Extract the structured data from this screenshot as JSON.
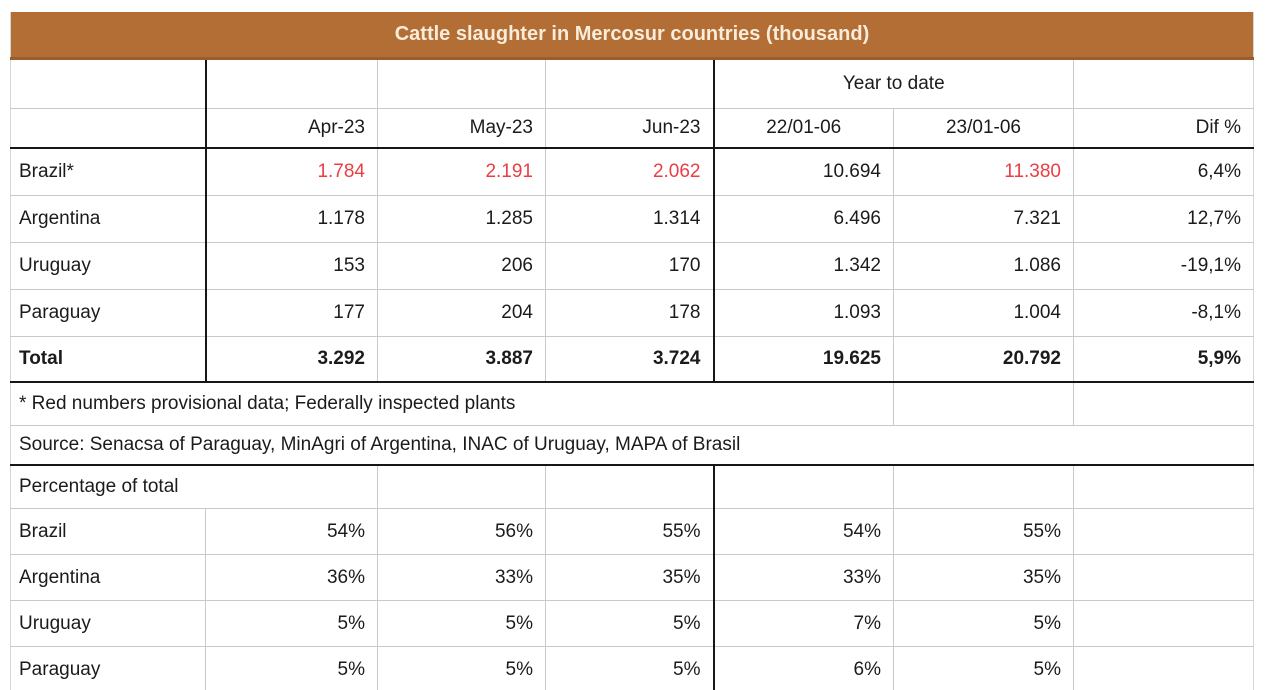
{
  "title": "Cattle slaughter in Mercosur countries (thousand)",
  "colors": {
    "title_bar_bg": "#b26e34",
    "title_text": "#f9ecdb",
    "provisional_red": "#ea3e45",
    "gridline_gray": "#c9c9c9",
    "border_black": "#161616"
  },
  "table": {
    "year_to_date_label": "Year to date",
    "columns": [
      "Apr-23",
      "May-23",
      "Jun-23",
      "22/01-06",
      "23/01-06",
      "Dif %"
    ],
    "rows": [
      {
        "label": "Brazil*",
        "values": [
          "1.784",
          "2.191",
          "2.062",
          "10.694",
          "11.380",
          "6,4%"
        ],
        "red": [
          true,
          true,
          true,
          false,
          true,
          false
        ]
      },
      {
        "label": "Argentina",
        "values": [
          "1.178",
          "1.285",
          "1.314",
          "6.496",
          "7.321",
          "12,7%"
        ]
      },
      {
        "label": "Uruguay",
        "values": [
          "153",
          "206",
          "170",
          "1.342",
          "1.086",
          "-19,1%"
        ]
      },
      {
        "label": "Paraguay",
        "values": [
          "177",
          "204",
          "178",
          "1.093",
          "1.004",
          "-8,1%"
        ]
      }
    ],
    "total": {
      "label": "Total",
      "values": [
        "3.292",
        "3.887",
        "3.724",
        "19.625",
        "20.792",
        "5,9%"
      ]
    },
    "footnotes": [
      "* Red numbers provisional data; Federally inspected plants",
      "Source: Senacsa of Paraguay, MinAgri of Argentina, INAC of Uruguay, MAPA of Brasil"
    ],
    "percentage": {
      "label": "Percentage of total",
      "rows": [
        {
          "label": "Brazil",
          "values": [
            "54%",
            "56%",
            "55%",
            "54%",
            "55%",
            ""
          ]
        },
        {
          "label": "Argentina",
          "values": [
            "36%",
            "33%",
            "35%",
            "33%",
            "35%",
            ""
          ]
        },
        {
          "label": "Uruguay",
          "values": [
            "5%",
            "5%",
            "5%",
            "7%",
            "5%",
            ""
          ]
        },
        {
          "label": "Paraguay",
          "values": [
            "5%",
            "5%",
            "5%",
            "6%",
            "5%",
            ""
          ]
        }
      ]
    }
  },
  "chart_data": {
    "type": "table",
    "title": "Cattle slaughter in Mercosur countries (thousand)",
    "column_group_header": "Year to date",
    "columns": [
      "Apr-23",
      "May-23",
      "Jun-23",
      "22/01-06",
      "23/01-06",
      "Dif %"
    ],
    "rows": [
      {
        "label": "Brazil*",
        "Apr-23": 1784,
        "May-23": 2191,
        "Jun-23": 2062,
        "22/01-06": 10694,
        "23/01-06": 11380,
        "Dif %": "6,4%"
      },
      {
        "label": "Argentina",
        "Apr-23": 1178,
        "May-23": 1285,
        "Jun-23": 1314,
        "22/01-06": 6496,
        "23/01-06": 7321,
        "Dif %": "12,7%"
      },
      {
        "label": "Uruguay",
        "Apr-23": 153,
        "May-23": 206,
        "Jun-23": 170,
        "22/01-06": 1342,
        "23/01-06": 1086,
        "Dif %": "-19,1%"
      },
      {
        "label": "Paraguay",
        "Apr-23": 177,
        "May-23": 204,
        "Jun-23": 178,
        "22/01-06": 1093,
        "23/01-06": 1004,
        "Dif %": "-8,1%"
      },
      {
        "label": "Total",
        "Apr-23": 3292,
        "May-23": 3887,
        "Jun-23": 3724,
        "22/01-06": 19625,
        "23/01-06": 20792,
        "Dif %": "5,9%"
      }
    ],
    "percentage_of_total": [
      {
        "label": "Brazil",
        "Apr-23": "54%",
        "May-23": "56%",
        "Jun-23": "55%",
        "22/01-06": "54%",
        "23/01-06": "55%"
      },
      {
        "label": "Argentina",
        "Apr-23": "36%",
        "May-23": "33%",
        "Jun-23": "35%",
        "22/01-06": "33%",
        "23/01-06": "35%"
      },
      {
        "label": "Uruguay",
        "Apr-23": "5%",
        "May-23": "5%",
        "Jun-23": "5%",
        "22/01-06": "7%",
        "23/01-06": "5%"
      },
      {
        "label": "Paraguay",
        "Apr-23": "5%",
        "May-23": "5%",
        "Jun-23": "5%",
        "22/01-06": "6%",
        "23/01-06": "5%"
      }
    ],
    "notes": [
      "* Red numbers provisional data; Federally inspected plants",
      "Source: Senacsa of Paraguay, MinAgri of Argentina, INAC of Uruguay, MAPA of Brasil"
    ],
    "provisional_values_red": [
      "Brazil* Apr-23",
      "Brazil* May-23",
      "Brazil* Jun-23",
      "Brazil* 23/01-06"
    ]
  }
}
